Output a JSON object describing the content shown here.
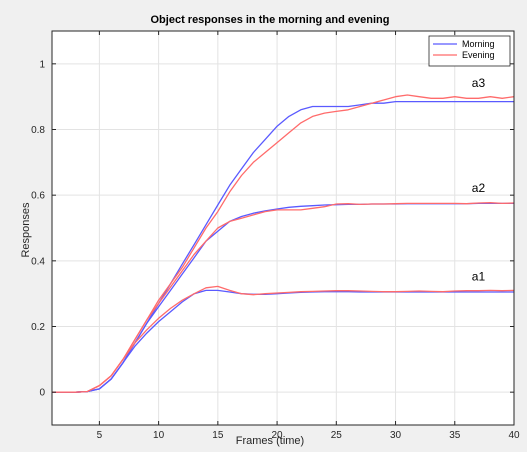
{
  "chart_data": {
    "type": "line",
    "title": "Object responses in the morning and evening",
    "xlabel": "Frames (time)",
    "ylabel": "Responses",
    "xlim": [
      1,
      40
    ],
    "ylim": [
      -0.1,
      1.1
    ],
    "xticks": [
      5,
      10,
      15,
      20,
      25,
      30,
      35,
      40
    ],
    "yticks": [
      0,
      0.2,
      0.4,
      0.6,
      0.8,
      1
    ],
    "grid": true,
    "legend_position": "top-right",
    "colors": {
      "Morning": "#5a5aff",
      "Evening": "#ff6b6b"
    },
    "curve_labels": [
      {
        "text": "a3",
        "x": 37,
        "y": 0.93
      },
      {
        "text": "a2",
        "x": 37,
        "y": 0.61
      },
      {
        "text": "a1",
        "x": 37,
        "y": 0.34
      }
    ],
    "x": [
      1,
      2,
      3,
      4,
      5,
      6,
      7,
      8,
      9,
      10,
      11,
      12,
      13,
      14,
      15,
      16,
      17,
      18,
      19,
      20,
      21,
      22,
      23,
      24,
      25,
      26,
      27,
      28,
      29,
      30,
      31,
      32,
      33,
      34,
      35,
      36,
      37,
      38,
      39,
      40
    ],
    "series": [
      {
        "name": "Morning",
        "curve": "a3",
        "values": [
          0,
          0,
          0,
          0.002,
          0.01,
          0.04,
          0.09,
          0.15,
          0.21,
          0.27,
          0.33,
          0.39,
          0.45,
          0.51,
          0.57,
          0.63,
          0.68,
          0.73,
          0.77,
          0.81,
          0.84,
          0.86,
          0.87,
          0.87,
          0.87,
          0.87,
          0.875,
          0.88,
          0.88,
          0.885,
          0.885,
          0.885,
          0.885,
          0.885,
          0.885,
          0.885,
          0.885,
          0.885,
          0.885,
          0.885
        ]
      },
      {
        "name": "Evening",
        "curve": "a3",
        "values": [
          0,
          0,
          0,
          0.002,
          0.02,
          0.05,
          0.1,
          0.16,
          0.22,
          0.28,
          0.33,
          0.38,
          0.44,
          0.5,
          0.55,
          0.61,
          0.66,
          0.7,
          0.73,
          0.76,
          0.79,
          0.82,
          0.84,
          0.85,
          0.855,
          0.86,
          0.87,
          0.88,
          0.89,
          0.9,
          0.905,
          0.9,
          0.895,
          0.895,
          0.9,
          0.895,
          0.895,
          0.9,
          0.895,
          0.9
        ]
      },
      {
        "name": "Morning",
        "curve": "a2",
        "values": [
          0,
          0,
          0,
          0.002,
          0.01,
          0.04,
          0.09,
          0.15,
          0.21,
          0.26,
          0.31,
          0.36,
          0.41,
          0.46,
          0.49,
          0.52,
          0.535,
          0.545,
          0.552,
          0.558,
          0.563,
          0.566,
          0.568,
          0.57,
          0.571,
          0.572,
          0.572,
          0.573,
          0.573,
          0.573,
          0.574,
          0.574,
          0.574,
          0.574,
          0.574,
          0.574,
          0.575,
          0.575,
          0.575,
          0.575
        ]
      },
      {
        "name": "Evening",
        "curve": "a2",
        "values": [
          0,
          0,
          0,
          0.002,
          0.02,
          0.05,
          0.1,
          0.16,
          0.22,
          0.27,
          0.32,
          0.37,
          0.42,
          0.46,
          0.5,
          0.52,
          0.53,
          0.54,
          0.55,
          0.555,
          0.555,
          0.555,
          0.56,
          0.565,
          0.573,
          0.574,
          0.572,
          0.573,
          0.573,
          0.574,
          0.575,
          0.575,
          0.575,
          0.575,
          0.575,
          0.574,
          0.576,
          0.577,
          0.575,
          0.576
        ]
      },
      {
        "name": "Morning",
        "curve": "a1",
        "values": [
          0,
          0,
          0,
          0.002,
          0.01,
          0.04,
          0.09,
          0.14,
          0.18,
          0.215,
          0.245,
          0.275,
          0.3,
          0.31,
          0.31,
          0.305,
          0.3,
          0.298,
          0.298,
          0.3,
          0.302,
          0.304,
          0.305,
          0.306,
          0.306,
          0.306,
          0.305,
          0.305,
          0.305,
          0.305,
          0.305,
          0.305,
          0.305,
          0.305,
          0.305,
          0.305,
          0.305,
          0.305,
          0.305,
          0.305
        ]
      },
      {
        "name": "Evening",
        "curve": "a1",
        "values": [
          0,
          0,
          0,
          0.002,
          0.02,
          0.05,
          0.1,
          0.15,
          0.19,
          0.225,
          0.255,
          0.28,
          0.3,
          0.318,
          0.322,
          0.31,
          0.3,
          0.297,
          0.3,
          0.302,
          0.304,
          0.306,
          0.307,
          0.308,
          0.309,
          0.309,
          0.308,
          0.307,
          0.306,
          0.306,
          0.307,
          0.308,
          0.307,
          0.306,
          0.308,
          0.309,
          0.309,
          0.31,
          0.309,
          0.31
        ]
      }
    ]
  }
}
